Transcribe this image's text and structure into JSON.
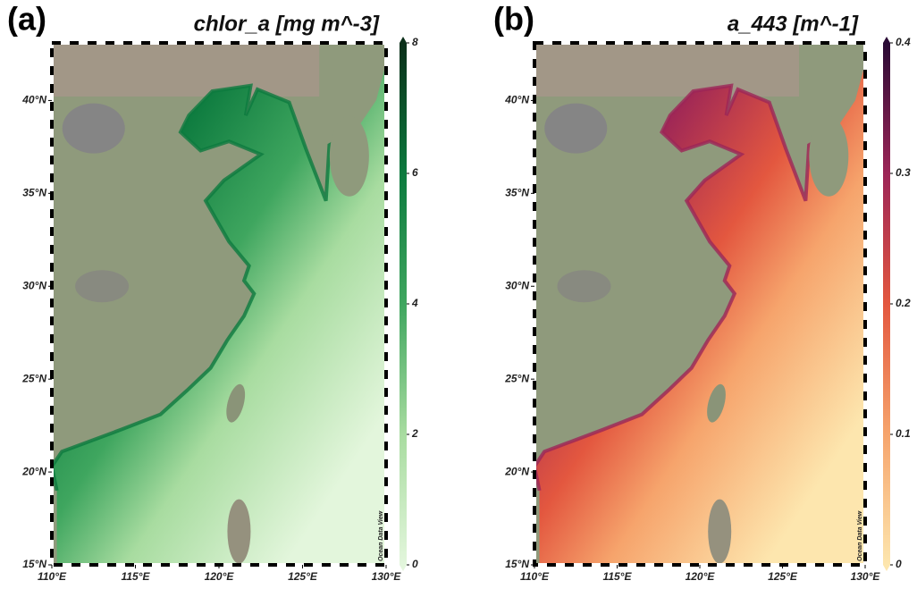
{
  "panels": [
    {
      "label": "(a)",
      "title": "chlor_a [mg m^-3]",
      "watermark": "Ocean Data View",
      "colorbar": {
        "range": [
          0,
          8
        ],
        "ticks": [
          0,
          2,
          4,
          6,
          8
        ],
        "colors": [
          "#e3f6dc",
          "#a8dca0",
          "#3fa65f",
          "#0c7a3e",
          "#0a2e18"
        ]
      },
      "lonlim": [
        110,
        130
      ],
      "latlim": [
        15,
        43.1
      ],
      "lonticks": [
        {
          "value": 110,
          "label": "110°E"
        },
        {
          "value": 115,
          "label": "115°E"
        },
        {
          "value": 120,
          "label": "120°E"
        },
        {
          "value": 125,
          "label": "125°E"
        },
        {
          "value": 130,
          "label": "130°E"
        }
      ],
      "latticks": [
        {
          "value": 15,
          "label": "15°N"
        },
        {
          "value": 20,
          "label": "20°N"
        },
        {
          "value": 25,
          "label": "25°N"
        },
        {
          "value": 30,
          "label": "30°N"
        },
        {
          "value": 35,
          "label": "35°N"
        },
        {
          "value": 40,
          "label": "40°N"
        }
      ]
    },
    {
      "label": "(b)",
      "title": "a_443 [m^-1]",
      "watermark": "Ocean Data View",
      "colorbar": {
        "range": [
          0,
          0.4
        ],
        "ticks": [
          0,
          0.1,
          0.2,
          0.3,
          0.4
        ],
        "colors": [
          "#fde6ae",
          "#f6a46c",
          "#e3573f",
          "#9c2557",
          "#2a0b35"
        ]
      },
      "lonlim": [
        110,
        130
      ],
      "latlim": [
        15,
        43.1
      ],
      "lonticks": [
        {
          "value": 110,
          "label": "110°E"
        },
        {
          "value": 115,
          "label": "115°E"
        },
        {
          "value": 120,
          "label": "120°E"
        },
        {
          "value": 125,
          "label": "125°E"
        },
        {
          "value": 130,
          "label": "130°E"
        }
      ],
      "latticks": [
        {
          "value": 15,
          "label": "15°N"
        },
        {
          "value": 20,
          "label": "20°N"
        },
        {
          "value": 25,
          "label": "25°N"
        },
        {
          "value": 30,
          "label": "30°N"
        },
        {
          "value": 35,
          "label": "35°N"
        },
        {
          "value": 40,
          "label": "40°N"
        }
      ]
    }
  ]
}
